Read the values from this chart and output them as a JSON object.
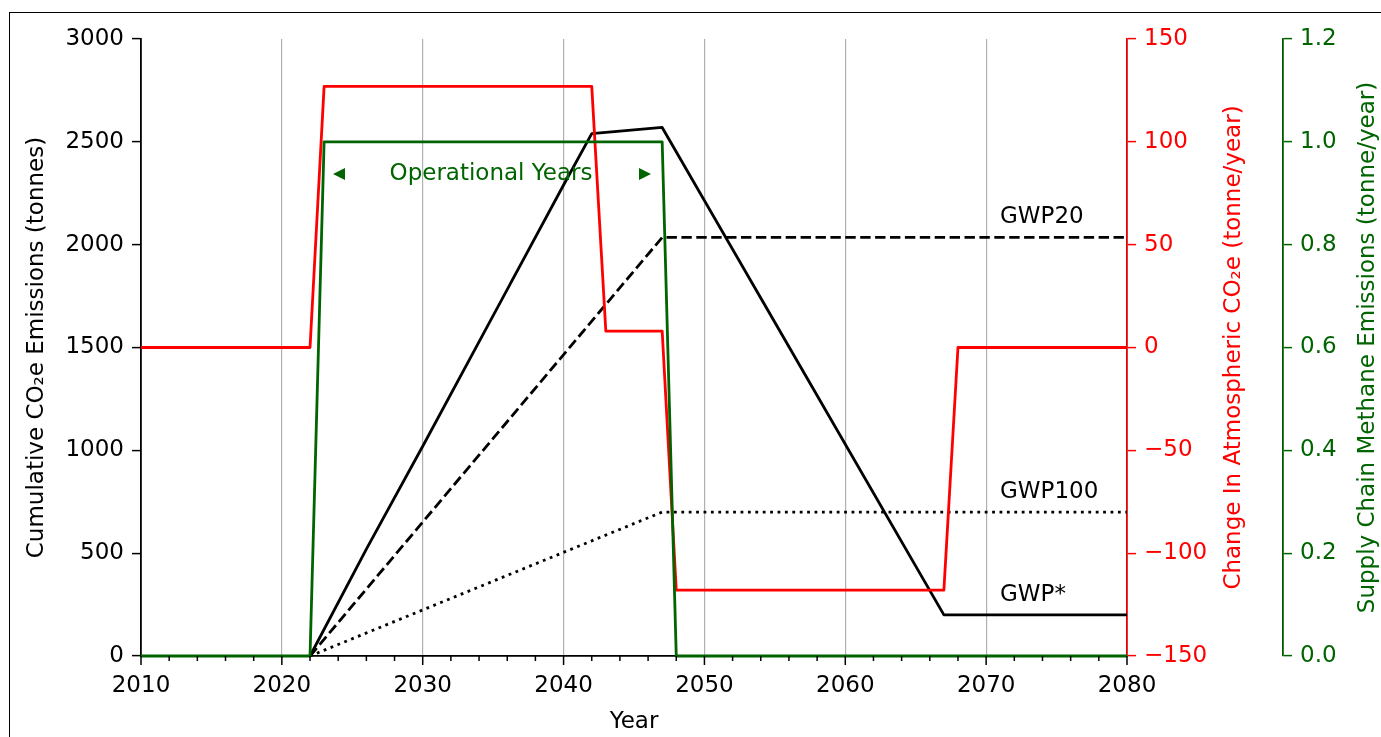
{
  "chart_data": {
    "type": "line",
    "xlabel": "Year",
    "ylabel": "Cumulative CO₂e Emissions (tonnes)",
    "y2label": "Change In Atmospheric CO₂e (tonne/year)",
    "y3label": "Supply Chain Methane Emissions (tonne/year)",
    "xlim": [
      2010,
      2080
    ],
    "xticks": [
      2010,
      {
        "value": 2012,
        "label": null
      },
      {
        "value": 2014,
        "label": null
      },
      {
        "value": 2016,
        "label": null
      },
      {
        "value": 2018,
        "label": null
      },
      2020,
      {
        "value": 2022,
        "label": null
      },
      {
        "value": 2024,
        "label": null
      },
      {
        "value": 2026,
        "label": null
      },
      {
        "value": 2028,
        "label": null
      },
      2030,
      {
        "value": 2032,
        "label": null
      },
      {
        "value": 2034,
        "label": null
      },
      {
        "value": 2036,
        "label": null
      },
      {
        "value": 2038,
        "label": null
      },
      2040,
      {
        "value": 2042,
        "label": null
      },
      {
        "value": 2044,
        "label": null
      },
      {
        "value": 2046,
        "label": null
      },
      {
        "value": 2048,
        "label": null
      },
      2050,
      {
        "value": 2052,
        "label": null
      },
      {
        "value": 2054,
        "label": null
      },
      {
        "value": 2056,
        "label": null
      },
      {
        "value": 2058,
        "label": null
      },
      2060,
      {
        "value": 2062,
        "label": null
      },
      {
        "value": 2064,
        "label": null
      },
      {
        "value": 2066,
        "label": null
      },
      {
        "value": 2068,
        "label": null
      },
      2070,
      {
        "value": 2072,
        "label": null
      },
      {
        "value": 2074,
        "label": null
      },
      {
        "value": 2076,
        "label": null
      },
      {
        "value": 2078,
        "label": null
      },
      2080
    ],
    "ylim": [
      0,
      3000
    ],
    "yticks": [
      0,
      500,
      1000,
      1500,
      2000,
      2500,
      3000
    ],
    "y2lim": [
      -150,
      150
    ],
    "y2ticks": [
      {
        "value": -150,
        "label": "−150"
      },
      {
        "value": -100,
        "label": "−100"
      },
      {
        "value": -50,
        "label": "−50"
      },
      0,
      50,
      100,
      150
    ],
    "y3lim": [
      0,
      1.2
    ],
    "y3ticks": [
      {
        "value": 0,
        "label": "0.0"
      },
      0.2,
      0.4,
      0.6,
      0.8,
      {
        "value": 1,
        "label": "1.0"
      },
      1.2
    ],
    "grid": "x",
    "annotations": [
      "Operational Years"
    ],
    "series": [
      {
        "name": "GWP*",
        "color": "#000000",
        "line_style": "solid",
        "x": [
          2022,
          2026,
          2030,
          2040,
          2042,
          2047,
          2067,
          2080
        ],
        "values": [
          0,
          520,
          1020,
          2290,
          2540,
          2570,
          200,
          200
        ]
      },
      {
        "name": "GWP20",
        "color": "#000000",
        "line_style": "dashed",
        "x": [
          2022,
          2047,
          2080
        ],
        "values": [
          0,
          2035,
          2035
        ]
      },
      {
        "name": "GWP100",
        "color": "#000000",
        "line_style": "dotted",
        "x": [
          2022,
          2047,
          2080
        ],
        "values": [
          0,
          700,
          700
        ]
      },
      {
        "color": "#ff0000",
        "axis": "y2",
        "x": [
          2010,
          2022,
          2023,
          2042,
          2043,
          2047,
          2048,
          2067,
          2068,
          2080
        ],
        "values": [
          0,
          0,
          127,
          127,
          8,
          8,
          -118,
          -118,
          0,
          0
        ]
      },
      {
        "color": "#006400",
        "axis": "y3",
        "x": [
          2010,
          2022,
          2023,
          2047,
          2048,
          2080
        ],
        "values": [
          0,
          0,
          1,
          1,
          0,
          0
        ]
      }
    ]
  }
}
